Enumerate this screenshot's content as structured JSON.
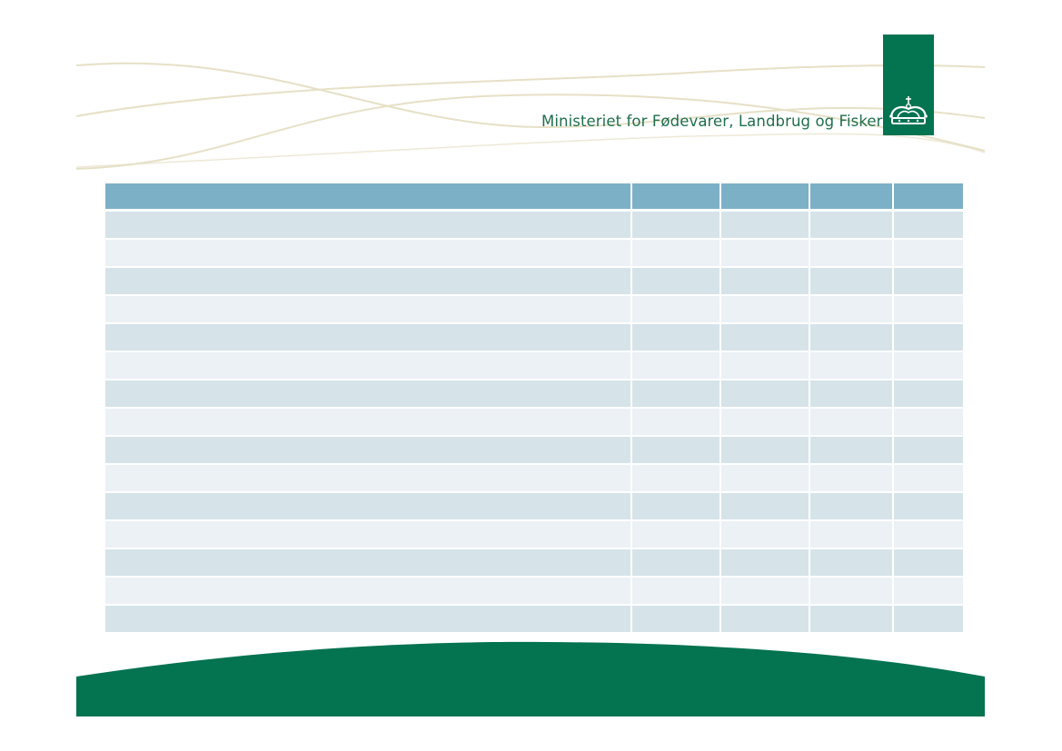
{
  "header": {
    "ministry_name": "Ministeriet for Fødevarer, Landbrug og Fiskeri",
    "logo_icon": "crown-icon"
  },
  "colors": {
    "brand_green": "#037350",
    "wave_line": "#e6e0c6",
    "table_header": "#7cb0c7",
    "row_dark": "#d6e3e9",
    "row_light": "#ebf1f5"
  },
  "table": {
    "columns": [
      "",
      "",
      "",
      "",
      ""
    ],
    "rows": [
      [
        "",
        "",
        "",
        "",
        ""
      ],
      [
        "",
        "",
        "",
        "",
        ""
      ],
      [
        "",
        "",
        "",
        "",
        ""
      ],
      [
        "",
        "",
        "",
        "",
        ""
      ],
      [
        "",
        "",
        "",
        "",
        ""
      ],
      [
        "",
        "",
        "",
        "",
        ""
      ],
      [
        "",
        "",
        "",
        "",
        ""
      ],
      [
        "",
        "",
        "",
        "",
        ""
      ],
      [
        "",
        "",
        "",
        "",
        ""
      ],
      [
        "",
        "",
        "",
        "",
        ""
      ],
      [
        "",
        "",
        "",
        "",
        ""
      ],
      [
        "",
        "",
        "",
        "",
        ""
      ],
      [
        "",
        "",
        "",
        "",
        ""
      ],
      [
        "",
        "",
        "",
        "",
        ""
      ],
      [
        "",
        "",
        "",
        "",
        ""
      ]
    ]
  }
}
